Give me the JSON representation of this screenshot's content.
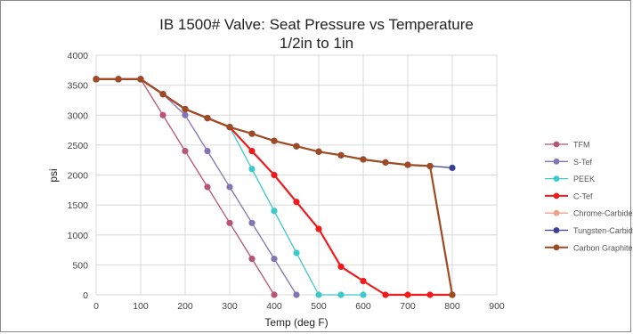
{
  "chart_data": {
    "type": "line",
    "title": "IB 1500# Valve: Seat Pressure vs Temperature",
    "subtitle": "1/2in to 1in",
    "xlabel": "Temp (deg F)",
    "ylabel": "psi",
    "xlim": [
      0,
      900
    ],
    "ylim": [
      0,
      4000
    ],
    "xticks": [
      0,
      100,
      200,
      300,
      400,
      500,
      600,
      700,
      800,
      900
    ],
    "yticks": [
      0,
      500,
      1000,
      1500,
      2000,
      2500,
      3000,
      3500,
      4000
    ],
    "grid": true,
    "legend_position": "right",
    "series": [
      {
        "name": "TFM",
        "color": "#B85477",
        "width": 1.3,
        "x": [
          0,
          50,
          100,
          150,
          200,
          250,
          300,
          350,
          400
        ],
        "y": [
          3600,
          3600,
          3600,
          3000,
          2400,
          1800,
          1200,
          600,
          0
        ]
      },
      {
        "name": "S-Tef",
        "color": "#8474B4",
        "width": 1.3,
        "x": [
          0,
          50,
          100,
          150,
          200,
          250,
          300,
          350,
          400,
          450
        ],
        "y": [
          3600,
          3600,
          3600,
          3350,
          3000,
          2400,
          1800,
          1200,
          600,
          0
        ]
      },
      {
        "name": "PEEK",
        "color": "#3FC8CC",
        "width": 1.3,
        "x": [
          0,
          50,
          100,
          150,
          200,
          250,
          300,
          350,
          400,
          450,
          500,
          550,
          600
        ],
        "y": [
          3600,
          3600,
          3600,
          3350,
          3100,
          2950,
          2800,
          2100,
          1400,
          700,
          0,
          0,
          0
        ]
      },
      {
        "name": "C-Tef",
        "color": "#F01A1A",
        "width": 2.2,
        "x": [
          0,
          50,
          100,
          150,
          200,
          250,
          300,
          350,
          400,
          450,
          500,
          550,
          600,
          650,
          700,
          750,
          800
        ],
        "y": [
          3600,
          3600,
          3600,
          3350,
          3100,
          2950,
          2800,
          2400,
          2000,
          1550,
          1100,
          470,
          230,
          0,
          0,
          0,
          0
        ]
      },
      {
        "name": "Chrome-Carbide",
        "color": "#F2A08A",
        "width": 1.3,
        "x": [
          0,
          50,
          100,
          150,
          200,
          250,
          300
        ],
        "y": [
          3600,
          3600,
          3600,
          3350,
          3100,
          2950,
          2800
        ]
      },
      {
        "name": "Tungsten-Carbide",
        "color": "#3A3F96",
        "width": 1.3,
        "x": [
          0,
          50,
          100,
          150,
          200,
          250,
          300,
          350,
          400,
          450,
          500,
          550,
          600,
          650,
          700,
          750,
          800
        ],
        "y": [
          3600,
          3600,
          3600,
          3350,
          3100,
          2950,
          2800,
          2690,
          2570,
          2480,
          2390,
          2330,
          2260,
          2210,
          2170,
          2150,
          2120
        ]
      },
      {
        "name": "Carbon Graphite",
        "color": "#9E4A22",
        "width": 2.2,
        "x": [
          0,
          50,
          100,
          150,
          200,
          250,
          300,
          350,
          400,
          450,
          500,
          550,
          600,
          650,
          700,
          750,
          800
        ],
        "y": [
          3600,
          3600,
          3600,
          3350,
          3100,
          2950,
          2800,
          2690,
          2570,
          2480,
          2390,
          2330,
          2260,
          2210,
          2170,
          2150,
          0
        ]
      }
    ]
  }
}
